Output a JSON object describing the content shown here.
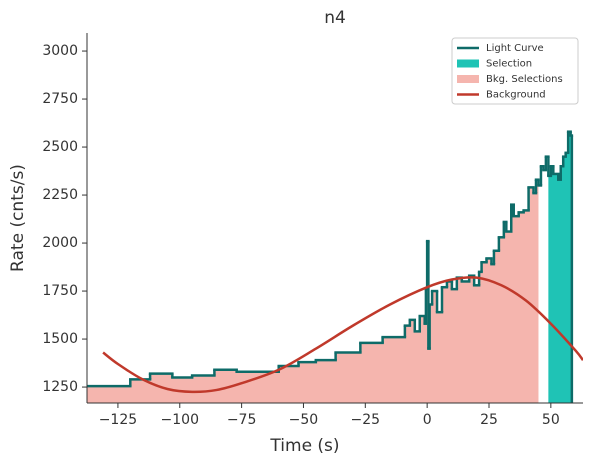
{
  "chart_data": {
    "type": "step",
    "title": "n4",
    "xlabel": "Time (s)",
    "ylabel": "Rate (cnts/s)",
    "xlim": [
      -137.5,
      63
    ],
    "ylim": [
      1167,
      3094
    ],
    "xticks": [
      {
        "value": -125,
        "label": "−125"
      },
      {
        "value": -100,
        "label": "−100"
      },
      {
        "value": -75,
        "label": "−75"
      },
      {
        "value": -50,
        "label": "−50"
      },
      {
        "value": -25,
        "label": "−25"
      },
      0,
      25,
      50
    ],
    "yticks": [
      1250,
      1500,
      1750,
      2000,
      2250,
      2500,
      2750,
      3000
    ],
    "legend": "upper right",
    "series": [
      {
        "name": "Light Curve",
        "color": "#0e6b68",
        "x": [
          -137.5,
          -120,
          -112,
          -103,
          -95,
          -86,
          -77,
          -60,
          -52,
          -45,
          -37,
          -27,
          -18,
          -9,
          -7,
          -5,
          -3,
          -1,
          -0.5,
          0,
          0.5,
          1,
          2,
          4,
          6,
          8,
          10,
          12,
          14,
          17,
          19,
          21,
          22,
          24,
          26,
          27,
          29,
          31,
          32,
          34,
          35,
          37,
          39,
          41,
          43,
          44,
          45,
          46,
          47,
          48,
          49,
          50,
          51,
          53,
          54,
          55,
          56,
          57,
          58,
          58.5
        ],
        "values": [
          1255,
          1290,
          1320,
          1300,
          1310,
          1340,
          1330,
          1360,
          1380,
          1390,
          1430,
          1480,
          1510,
          1570,
          1600,
          1540,
          1620,
          1580,
          1760,
          2010,
          1450,
          1680,
          1750,
          1640,
          1770,
          1800,
          1760,
          1820,
          1800,
          1830,
          1780,
          1850,
          1900,
          1920,
          1890,
          1960,
          2030,
          2110,
          2060,
          2200,
          2140,
          2160,
          2170,
          2290,
          2260,
          2330,
          2300,
          2400,
          2380,
          2450,
          2350,
          2400,
          2360,
          2330,
          2400,
          2450,
          2470,
          2580,
          2560,
          1160
        ]
      },
      {
        "name": "Selection",
        "color": "#1fc3b5",
        "range": [
          49,
          58.5
        ]
      },
      {
        "name": "Bkg. Selections",
        "color": "#f5b5ae",
        "range": [
          -137.5,
          45
        ]
      },
      {
        "name": "Background",
        "color": "#c0392b",
        "x": [
          -131,
          -125,
          -115,
          -105,
          -95,
          -85,
          -75,
          -60,
          -45,
          -30,
          -15,
          0,
          10,
          20,
          30,
          40,
          50,
          60,
          63
        ],
        "values": [
          1430,
          1370,
          1290,
          1240,
          1225,
          1235,
          1270,
          1340,
          1450,
          1570,
          1680,
          1770,
          1810,
          1820,
          1780,
          1700,
          1580,
          1440,
          1390
        ]
      }
    ]
  }
}
